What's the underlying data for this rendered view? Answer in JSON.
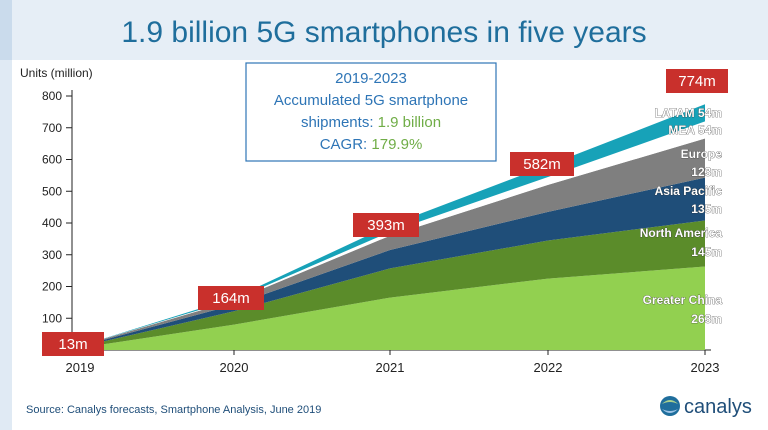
{
  "chart_data": {
    "type": "area",
    "title": "1.9 billion 5G smartphones in five years",
    "ylabel": "Units (million)",
    "x": [
      "2019",
      "2020",
      "2021",
      "2022",
      "2023"
    ],
    "ylim": [
      0,
      800
    ],
    "yticks": [
      0,
      100,
      200,
      300,
      400,
      500,
      600,
      700,
      800
    ],
    "stacked": true,
    "series": [
      {
        "name": "Greater China",
        "values": [
          7,
          80,
          165,
          225,
          263
        ],
        "color": "#92D050"
      },
      {
        "name": "North America",
        "values": [
          3,
          42,
          92,
          120,
          145
        ],
        "color": "#5B8C2A"
      },
      {
        "name": "Asia Pacific",
        "values": [
          2,
          20,
          58,
          90,
          135
        ],
        "color": "#1F4E79"
      },
      {
        "name": "Europe",
        "values": [
          1,
          14,
          45,
          85,
          123
        ],
        "color": "#7F7F7F"
      },
      {
        "name": "MEA",
        "values": [
          0,
          3,
          12,
          25,
          54
        ],
        "color": "#FFFFFF"
      },
      {
        "name": "LATAM",
        "values": [
          0,
          5,
          21,
          37,
          54
        ],
        "color": "#17A2B8"
      }
    ],
    "segment_labels": [
      {
        "line1": "LATAM 54m",
        "line2": ""
      },
      {
        "line1": "MEA 54m",
        "line2": ""
      },
      {
        "line1": "Europe",
        "line2": "123m"
      },
      {
        "line1": "Asia Pacific",
        "line2": "135m"
      },
      {
        "line1": "North America",
        "line2": "145m"
      },
      {
        "line1": "Greater China",
        "line2": "263m"
      }
    ],
    "totals": [
      {
        "x": "2019",
        "label": "13m"
      },
      {
        "x": "2020",
        "label": "164m"
      },
      {
        "x": "2021",
        "label": "393m"
      },
      {
        "x": "2022",
        "label": "582m"
      },
      {
        "x": "2023",
        "label": "774m"
      }
    ],
    "annotation": {
      "line1": "2019-2023",
      "line2": "Accumulated 5G smartphone",
      "line3_prefix": "shipments: ",
      "line3_value": "1.9 billion",
      "line4_prefix": "CAGR: ",
      "line4_value": "179.9%"
    },
    "source": "Source: Canalys forecasts, Smartphone Analysis, June 2019",
    "brand": "canalys",
    "colors": {
      "title": "#1F6E9C",
      "accent": "#2E75B6",
      "highlight": "#70AD47",
      "total_label_bg": "#C9302C",
      "total_label_text": "#FFFFFF",
      "band": "#E6EEF6"
    }
  }
}
